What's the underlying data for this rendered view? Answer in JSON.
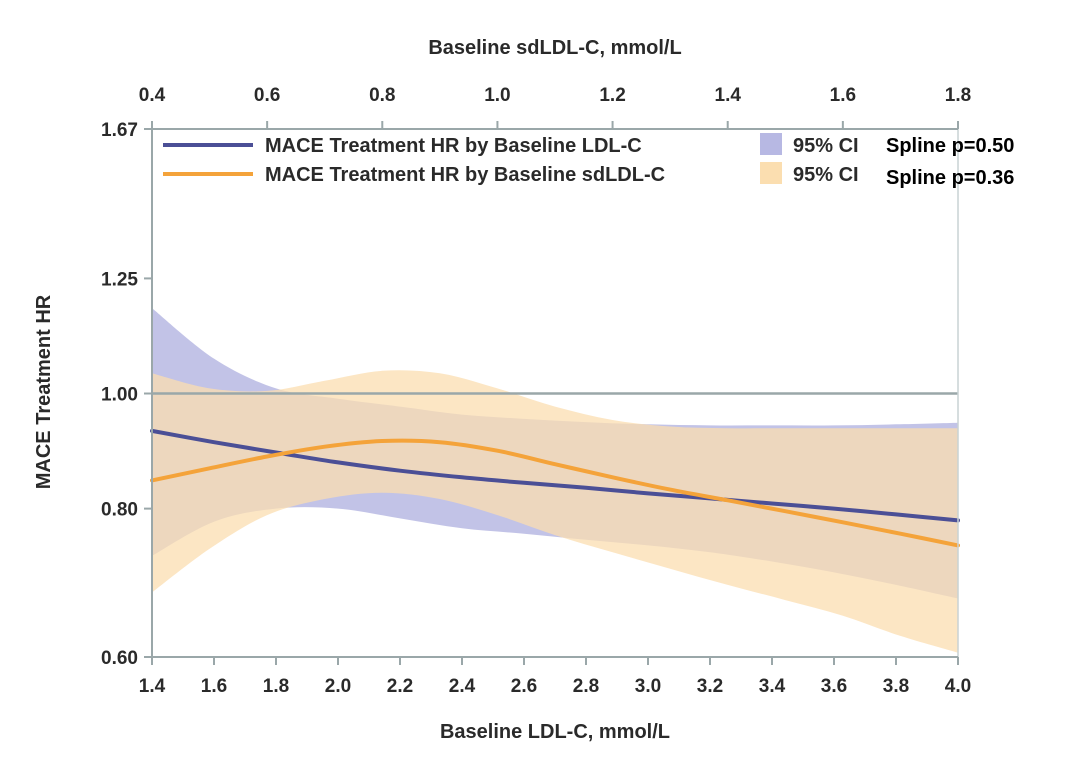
{
  "chart_data": {
    "type": "line",
    "ylabel": "MACE Treatment HR",
    "xlabel": "Baseline LDL-C, mmol/L",
    "x2label": "Baseline sdLDL-C, mmol/L",
    "xlim": [
      1.4,
      4.0
    ],
    "x2lim": [
      0.4,
      1.8
    ],
    "ylim": [
      0.6,
      1.67
    ],
    "yscale": "log",
    "x_ticks": [
      "1.4",
      "1.6",
      "1.8",
      "2.0",
      "2.2",
      "2.4",
      "2.6",
      "2.8",
      "3.0",
      "3.2",
      "3.4",
      "3.6",
      "3.8",
      "4.0"
    ],
    "x2_ticks": [
      "0.4",
      "0.6",
      "0.8",
      "1.0",
      "1.2",
      "1.4",
      "1.6",
      "1.8"
    ],
    "y_ticks": [
      "0.60",
      "0.80",
      "1.00",
      "1.25",
      "1.67"
    ],
    "reference_line": 1.0,
    "series": [
      {
        "name": "MACE Treatment HR by Baseline LDL-C",
        "axis": "bottom",
        "color": "#4b4f96",
        "ci_color": "#b7b8e3",
        "ci_label": "95% CI",
        "spline_label": "Spline p=0.50",
        "x": [
          1.4,
          1.6,
          1.8,
          2.0,
          2.2,
          2.4,
          2.6,
          2.8,
          3.0,
          3.2,
          3.4,
          3.6,
          3.8,
          4.0
        ],
        "y": [
          0.93,
          0.91,
          0.892,
          0.875,
          0.861,
          0.85,
          0.841,
          0.833,
          0.824,
          0.816,
          0.808,
          0.8,
          0.791,
          0.782
        ],
        "ci_low": [
          0.73,
          0.78,
          0.8,
          0.8,
          0.785,
          0.77,
          0.762,
          0.753,
          0.745,
          0.735,
          0.722,
          0.707,
          0.69,
          0.672
        ],
        "ci_high": [
          1.18,
          1.07,
          1.01,
          0.99,
          0.975,
          0.96,
          0.952,
          0.946,
          0.942,
          0.94,
          0.94,
          0.94,
          0.942,
          0.945
        ]
      },
      {
        "name": "MACE Treatment HR by Baseline sdLDL-C",
        "axis": "top",
        "color": "#f4a33a",
        "ci_color": "#fbdeb0",
        "ci_label": "95% CI",
        "spline_label": "Spline p=0.36",
        "x": [
          0.4,
          0.5,
          0.6,
          0.7,
          0.8,
          0.9,
          1.0,
          1.1,
          1.2,
          1.3,
          1.4,
          1.5,
          1.6,
          1.7,
          1.8
        ],
        "y": [
          0.845,
          0.865,
          0.885,
          0.902,
          0.912,
          0.91,
          0.895,
          0.872,
          0.85,
          0.83,
          0.813,
          0.796,
          0.779,
          0.762,
          0.745
        ],
        "ci_low": [
          0.68,
          0.74,
          0.79,
          0.815,
          0.825,
          0.815,
          0.79,
          0.76,
          0.735,
          0.712,
          0.69,
          0.67,
          0.65,
          0.625,
          0.605
        ],
        "ci_high": [
          1.04,
          1.01,
          1.005,
          1.025,
          1.045,
          1.04,
          1.01,
          0.975,
          0.95,
          0.938,
          0.935,
          0.935,
          0.935,
          0.935,
          0.935
        ]
      }
    ]
  }
}
